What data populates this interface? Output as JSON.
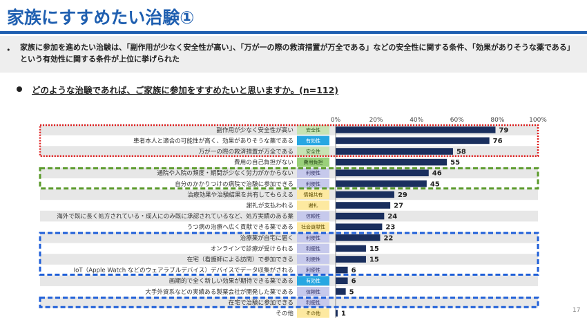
{
  "page": {
    "title": "家族にすすめたい治験①",
    "summary": "家族に参加を進めたい治験は、「副作用が少なく安全性が高い」、「万が一の際の救済措置が万全である」などの安全性に関する条件、「効果がありそうな薬である」という有効性に関する条件が上位に挙げられた",
    "bullet": "•",
    "question": "どのような治験であれば、ご家族に参加をすすめたいと思いますか。(n=112)",
    "page_number": "17"
  },
  "colors": {
    "title": "#1f5fb0",
    "bar": "#1a2f5e",
    "row_band": "#e7e7e7",
    "box_red": "#e02020",
    "box_green": "#5a9a2a",
    "box_blue": "#1f5fd8"
  },
  "category_styles": {
    "安全性": {
      "bg": "#c7e3b4",
      "fg": "#2d5a1e"
    },
    "有効性": {
      "bg": "#27a7e2",
      "fg": "#ffffff"
    },
    "費用負担": {
      "bg": "#9ad07a",
      "fg": "#1f3f12"
    },
    "利便性": {
      "bg": "#c6c9ec",
      "fg": "#333366"
    },
    "情報共有": {
      "bg": "#fde9a0",
      "fg": "#5a4a00"
    },
    "謝礼": {
      "bg": "#fde9a0",
      "fg": "#5a4a00"
    },
    "信頼性": {
      "bg": "#c6c9ec",
      "fg": "#333366"
    },
    "社会貢献性": {
      "bg": "#fde9a0",
      "fg": "#5a4a00"
    },
    "その他": {
      "bg": "#fde9a0",
      "fg": "#5a4a00"
    }
  },
  "chart_data": {
    "type": "bar",
    "orientation": "horizontal",
    "title": "",
    "xlabel": "",
    "ylabel": "",
    "xlim": [
      0,
      100
    ],
    "x_ticks": [
      "0%",
      "20%",
      "40%",
      "60%",
      "80%",
      "100%"
    ],
    "categories": [
      "副作用が少なく安全性が高い",
      "患者本人と適合の可能性が高く、効果がありそうな薬である",
      "万が一の際の救済措置が万全である",
      "費用の自己負担がない",
      "通院や入院の頻度・期間が少なく労力がかからない",
      "自分のかかりつけの病院で治験に参加できる",
      "治療効果や治験結果を共有してもらえる",
      "謝礼が支払われる",
      "海外で既に長く処方されている・成人にのみ既に承認されているなど、処方実績のある薬",
      "うつ病の治療へ広く貢献できる薬である",
      "治療薬が自宅に届く",
      "オンラインで診療が受けられる",
      "在宅（看護師による訪問）で参加できる",
      "IoT（Apple Watch などのウェアラブルデバイス）デバイスでデータ収集がされる",
      "画期的で全く新しい効果が期待できる薬である",
      "大手外資系などの実績ある製薬会社が開発した薬である",
      "在宅で治験に参加できる",
      "その他"
    ],
    "tags": [
      "安全性",
      "有効性",
      "安全性",
      "費用負担",
      "利便性",
      "利便性",
      "情報共有",
      "謝礼",
      "信頼性",
      "社会貢献性",
      "利便性",
      "利便性",
      "利便性",
      "利便性",
      "有効性",
      "信頼性",
      "利便性",
      "その他"
    ],
    "values": [
      79,
      76,
      58,
      55,
      46,
      45,
      29,
      27,
      24,
      23,
      22,
      15,
      15,
      6,
      6,
      5,
      0,
      1
    ],
    "value_labels": [
      "79",
      "76",
      "58",
      "55",
      "46",
      "45",
      "29",
      "27",
      "24",
      "23",
      "22",
      "15",
      "15",
      "6",
      "6",
      "5",
      "",
      "1"
    ],
    "highlight_boxes": [
      {
        "color": "red",
        "rows": [
          0,
          2
        ]
      },
      {
        "color": "green",
        "rows": [
          4,
          5
        ]
      },
      {
        "color": "blue",
        "rows": [
          10,
          13
        ]
      },
      {
        "color": "blue",
        "rows": [
          16,
          16
        ]
      }
    ]
  }
}
